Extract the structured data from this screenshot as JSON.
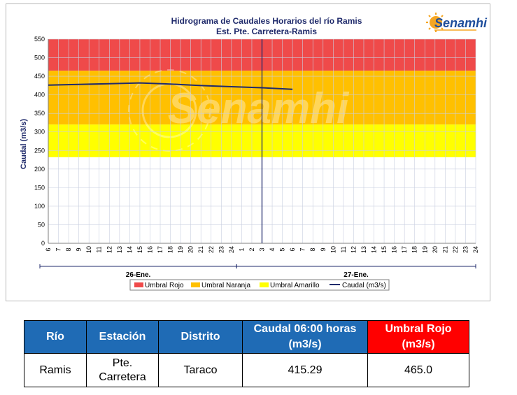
{
  "colors": {
    "umbral_rojo": "#ef4a4a",
    "umbral_naranja": "#ffc000",
    "umbral_amarillo": "#ffff00",
    "caudal_line": "#1f2a6b",
    "header_blue": "#1f6bb5",
    "header_red": "#ff0000",
    "logo_orange": "#f5a623",
    "logo_blue": "#1f4e9c"
  },
  "logo": {
    "text": "Senamhi",
    "watermark": "Senamhi",
    "icon": "sun-logo-icon"
  },
  "chart_data": {
    "type": "line",
    "title": "Hidrograma de Caudales Horarios del río Ramis",
    "subtitle": "Est. Pte. Carretera-Ramis",
    "ylabel": "Caudal  (m3/s)",
    "ylim": [
      0,
      550
    ],
    "y_ticks": [
      0,
      50,
      100,
      150,
      200,
      250,
      300,
      350,
      400,
      450,
      500,
      550
    ],
    "x_ticks": [
      "6",
      "7",
      "8",
      "9",
      "10",
      "11",
      "12",
      "13",
      "14",
      "15",
      "16",
      "17",
      "18",
      "19",
      "20",
      "21",
      "22",
      "23",
      "24",
      "1",
      "2",
      "3",
      "4",
      "5",
      "6",
      "7",
      "8",
      "9",
      "10",
      "11",
      "12",
      "13",
      "14",
      "15",
      "16",
      "17",
      "18",
      "19",
      "20",
      "21",
      "22",
      "23",
      "24"
    ],
    "x_groups": [
      {
        "label": "26-Ene.",
        "from": 0,
        "to": 18
      },
      {
        "label": "27-Ene.",
        "from": 19,
        "to": 42
      }
    ],
    "thresholds": [
      {
        "name": "Umbral Rojo",
        "from": 465,
        "to": 550
      },
      {
        "name": "Umbral Naranja",
        "from": 320,
        "to": 465
      },
      {
        "name": "Umbral Amarillo",
        "from": 232,
        "to": 320
      }
    ],
    "current_time_index": 21,
    "series": [
      {
        "name": "Caudal (m3/s)",
        "x_index": [
          0,
          3,
          6,
          9,
          12,
          15,
          18,
          21,
          24
        ],
        "values": [
          426,
          428,
          430,
          432,
          429,
          425,
          422,
          419,
          415
        ]
      }
    ],
    "legend": [
      "Umbral Rojo",
      "Umbral Naranja",
      "Umbral Amarillo",
      "Caudal (m3/s)"
    ],
    "legend_position": "bottom",
    "grid": true
  },
  "table": {
    "headers": {
      "rio": "Río",
      "estacion": "Estación",
      "distrito": "Distrito",
      "caudal_line1": "Caudal 06:00 horas",
      "caudal_line2": "(m3/s)",
      "umbral_line1": "Umbral Rojo",
      "umbral_line2": "(m3/s)"
    },
    "row": {
      "rio": "Ramis",
      "estacion_line1": "Pte.",
      "estacion_line2": "Carretera",
      "distrito": "Taraco",
      "caudal": "415.29",
      "umbral": "465.0"
    }
  }
}
